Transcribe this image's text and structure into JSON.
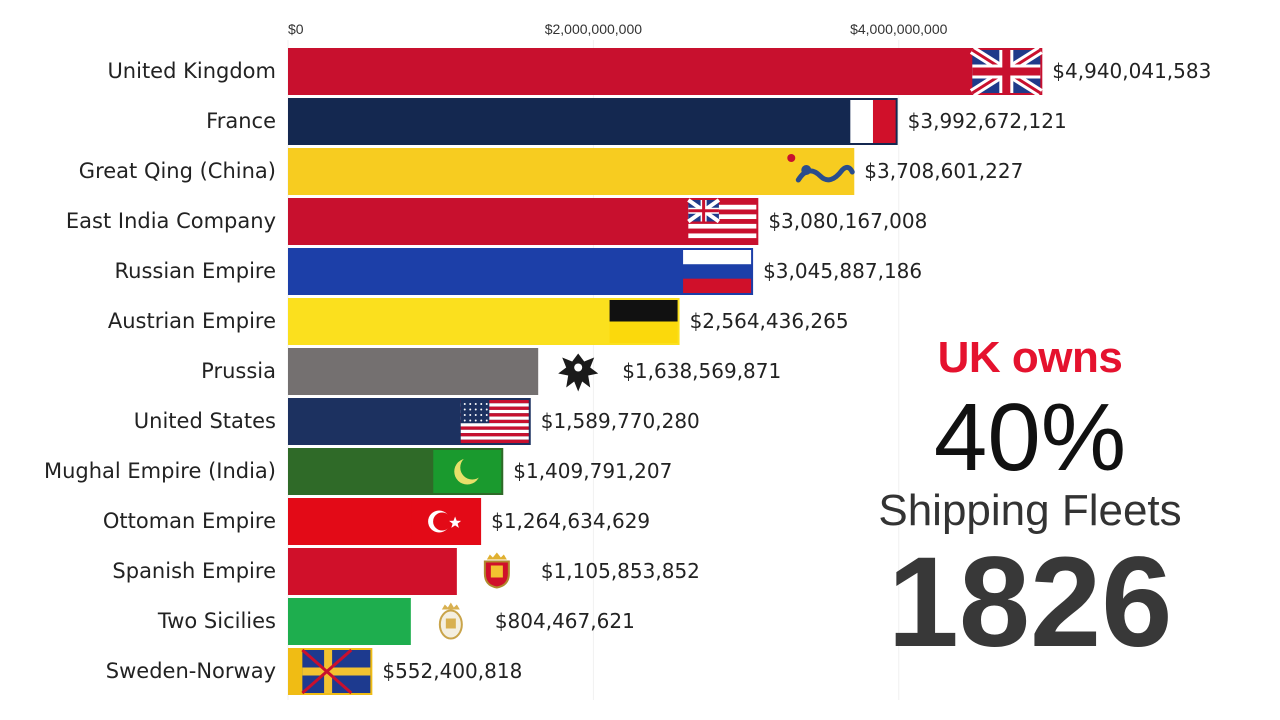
{
  "panel": {
    "headline": "UK owns",
    "percent": "40%",
    "subtitle": "Shipping Fleets",
    "year": "1826"
  },
  "chart_data": {
    "type": "bar",
    "orientation": "horizontal",
    "title": "",
    "xlabel": "",
    "ylabel": "",
    "xlim": [
      0,
      5200000000
    ],
    "x_ticks": [
      {
        "value": 0,
        "label": "$0"
      },
      {
        "value": 2000000000,
        "label": "$2,000,000,000"
      },
      {
        "value": 4000000000,
        "label": "$4,000,000,000"
      }
    ],
    "grid": true,
    "categories": [
      "United Kingdom",
      "France",
      "Great Qing (China)",
      "East India Company",
      "Russian Empire",
      "Austrian Empire",
      "Prussia",
      "United States",
      "Mughal Empire (India)",
      "Ottoman Empire",
      "Spanish Empire",
      "Two Sicilies",
      "Sweden-Norway"
    ],
    "values": [
      4940041583,
      3992672121,
      3708601227,
      3080167008,
      3045887186,
      2564436265,
      1638569871,
      1589770280,
      1409791207,
      1264634629,
      1105853852,
      804467621,
      552400818
    ],
    "value_labels": [
      "$4,940,041,583",
      "$3,992,672,121",
      "$3,708,601,227",
      "$3,080,167,008",
      "$3,045,887,186",
      "$2,564,436,265",
      "$1,638,569,871",
      "$1,589,770,280",
      "$1,409,791,207",
      "$1,264,634,629",
      "$1,105,853,852",
      "$804,467,621",
      "$552,400,818"
    ],
    "colors": [
      "#c8102e",
      "#142850",
      "#f7cc20",
      "#c8102e",
      "#1c3fa8",
      "#fbe01e",
      "#747070",
      "#1c3160",
      "#2f6a28",
      "#e30a17",
      "#d0102a",
      "#1eae4e",
      "#f0bc14"
    ],
    "flag_icons": [
      "union-jack-flag-icon",
      "french-tricolour-flag-icon",
      "qing-dragon-flag-icon",
      "east-india-company-flag-icon",
      "russian-flag-icon",
      "austrian-flag-icon",
      "prussian-eagle-flag-icon",
      "us-flag-icon",
      "mughal-crescent-flag-icon",
      "ottoman-crescent-flag-icon",
      "spanish-coat-of-arms-icon",
      "two-sicilies-arms-icon",
      "sweden-norway-union-flag-icon"
    ]
  }
}
